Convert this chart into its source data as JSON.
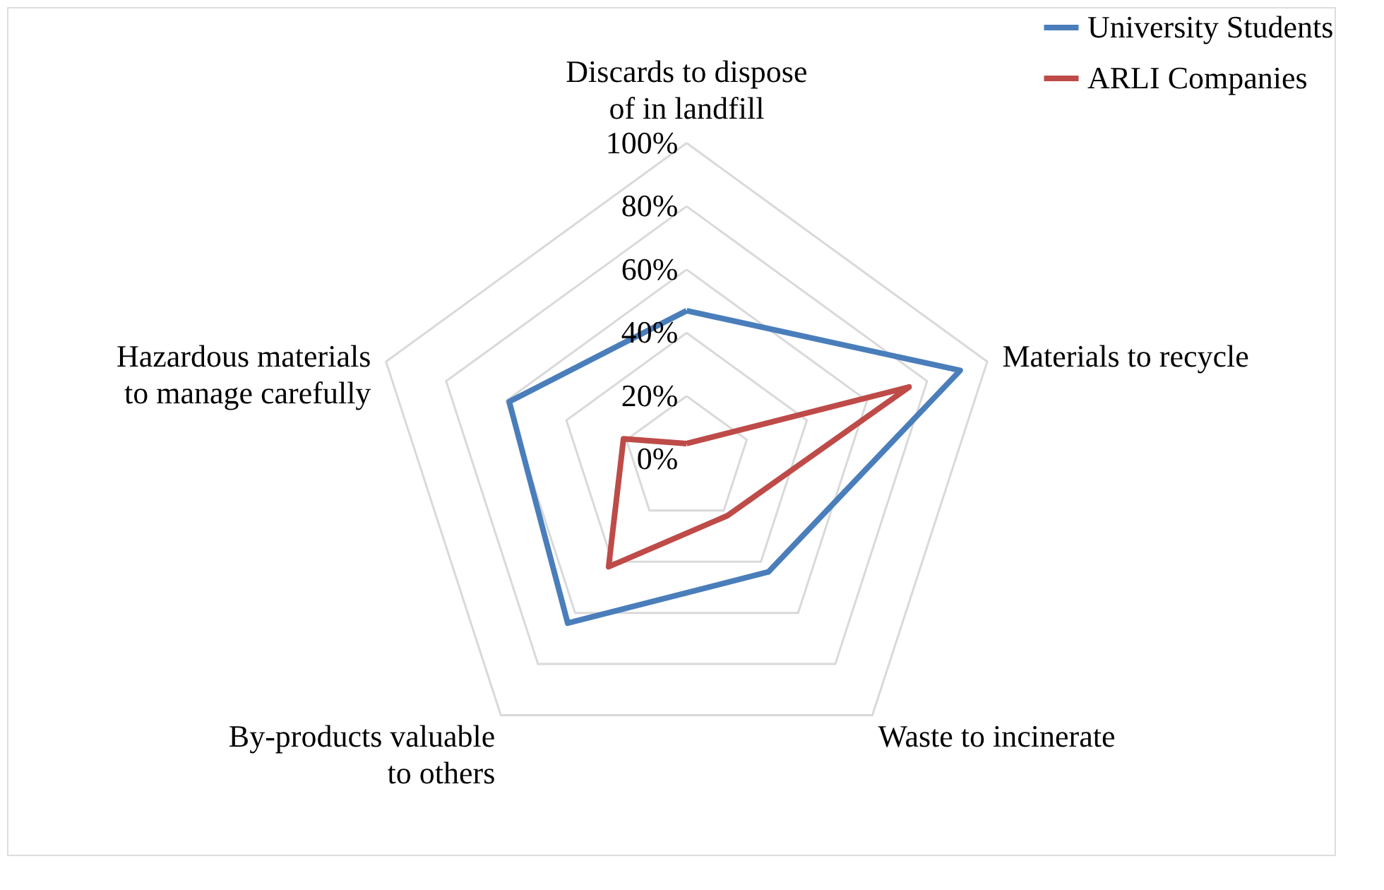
{
  "chart_data": {
    "type": "radar",
    "categories": [
      "Discards to dispose of in landfill",
      "Materials to recycle",
      "Waste to incinerate",
      "By-products valuable to others",
      "Hazardous materials to manage carefully"
    ],
    "series": [
      {
        "name": "University Students",
        "color": "#4a7ebb",
        "values": [
          47,
          91,
          44,
          64,
          59
        ]
      },
      {
        "name": "ARLI Companies",
        "color": "#be4b48",
        "values": [
          5,
          74,
          22,
          42,
          21
        ]
      }
    ],
    "ylim": [
      0,
      100
    ],
    "yticks": [
      {
        "value": 0,
        "label": "0%"
      },
      {
        "value": 20,
        "label": "20%"
      },
      {
        "value": 40,
        "label": "40%"
      },
      {
        "value": 60,
        "label": "60%"
      },
      {
        "value": 80,
        "label": "80%"
      },
      {
        "value": 100,
        "label": "100%"
      }
    ],
    "grid": true,
    "legend": "top right"
  }
}
